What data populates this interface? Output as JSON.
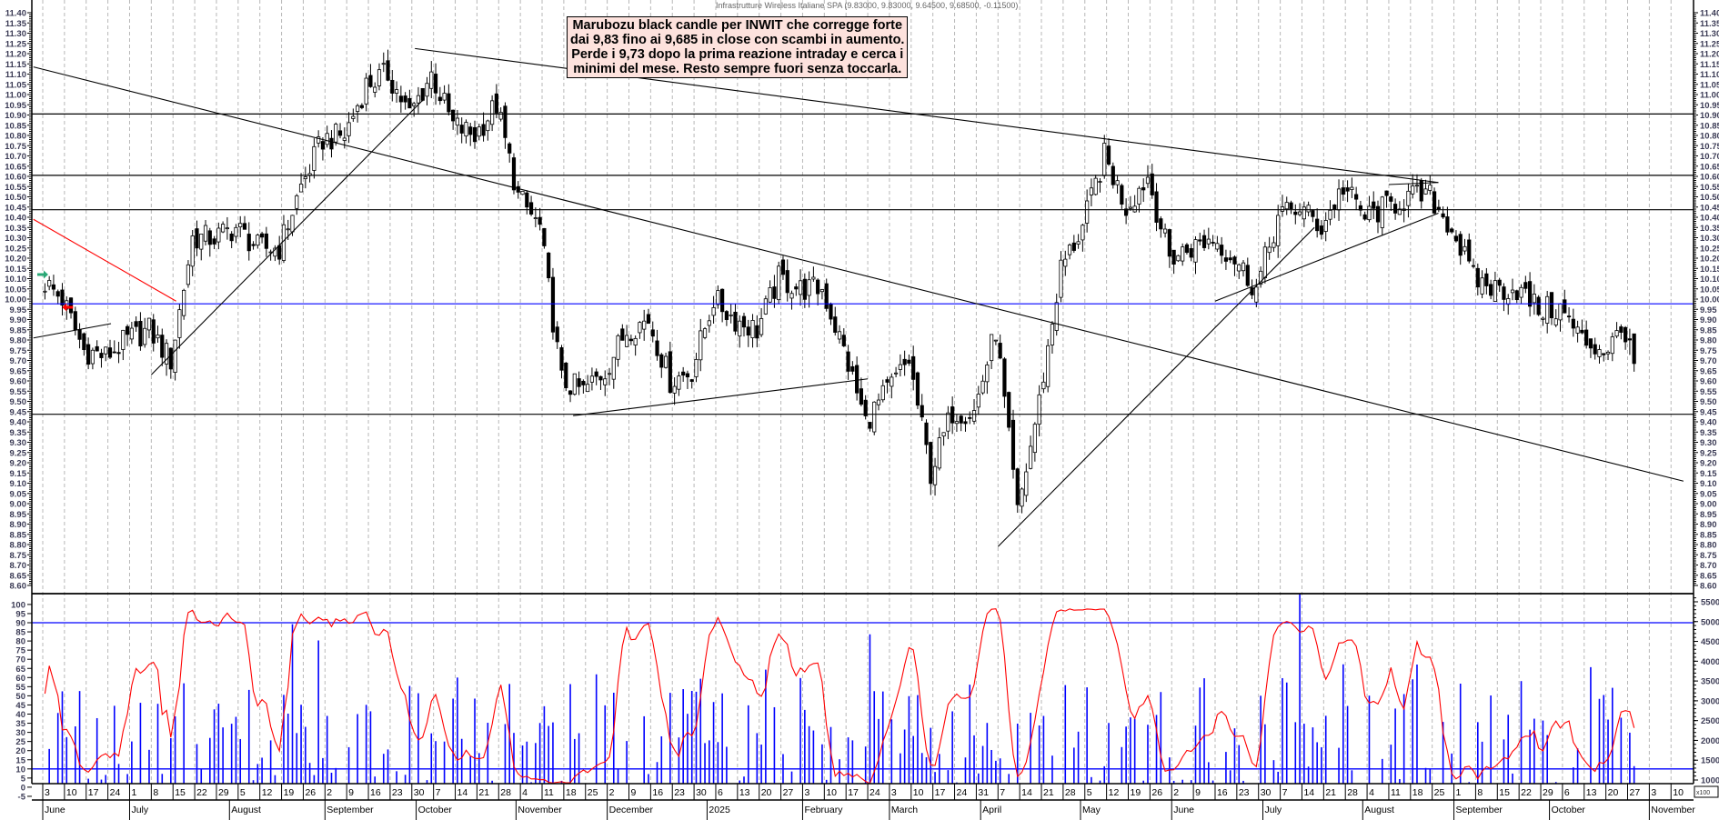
{
  "chart_data": [
    {
      "type": "candlestick",
      "title": "Infrastrutture Wireless Italiane SPA (9.83000, 9.83000, 9.64500, 9.68500, -0.11500)",
      "annotation": [
        "Marubozu black candle per INWIT che corregge forte",
        "dai 9,83 fino ai 9,685 in close con scambi in aumento.",
        "Perde i 9,73 dopo la prima reazione intraday e cerca i",
        "minimi del mese. Resto sempre fuori senza toccarla."
      ],
      "last_candle": {
        "open": 9.83,
        "high": 9.83,
        "low": 9.645,
        "close": 9.685,
        "change": -0.115
      },
      "ylim": [
        8.6,
        11.4
      ],
      "ytick_step": 0.05,
      "grid": "vertical dashed weekly",
      "week_labels": [
        "3",
        "10",
        "17",
        "24",
        "1",
        "8",
        "15",
        "22",
        "29",
        "5",
        "12",
        "19",
        "26",
        "2",
        "9",
        "16",
        "23",
        "30",
        "7",
        "14",
        "21",
        "28",
        "4",
        "11",
        "18",
        "25",
        "2",
        "9",
        "16",
        "23",
        "30",
        "6",
        "13",
        "20",
        "27",
        "3",
        "10",
        "17",
        "24",
        "3",
        "10",
        "17",
        "24",
        "31",
        "7",
        "14",
        "21",
        "28",
        "5",
        "12",
        "19",
        "26",
        "2",
        "9",
        "16",
        "23",
        "30",
        "7",
        "14",
        "21",
        "28",
        "4",
        "11",
        "18",
        "25",
        "1",
        "8",
        "15",
        "22",
        "29",
        "6",
        "13",
        "20",
        "27",
        "3",
        "10"
      ],
      "months": [
        {
          "label": "June",
          "date": "2024-06-03"
        },
        {
          "label": "July",
          "date": "2024-07-01"
        },
        {
          "label": "August",
          "date": "2024-08-01"
        },
        {
          "label": "September",
          "date": "2024-09-02"
        },
        {
          "label": "October",
          "date": "2024-10-01"
        },
        {
          "label": "November",
          "date": "2024-11-01"
        },
        {
          "label": "December",
          "date": "2024-12-02"
        },
        {
          "label": "2025",
          "date": "2025-01-02"
        },
        {
          "label": "February",
          "date": "2025-02-03"
        },
        {
          "label": "March",
          "date": "2025-03-03"
        },
        {
          "label": "April",
          "date": "2025-04-01"
        },
        {
          "label": "May",
          "date": "2025-05-02"
        },
        {
          "label": "June",
          "date": "2025-06-02"
        },
        {
          "label": "July",
          "date": "2025-07-01"
        },
        {
          "label": "August",
          "date": "2025-08-01"
        },
        {
          "label": "September",
          "date": "2025-09-01"
        },
        {
          "label": "October",
          "date": "2025-10-01"
        },
        {
          "label": "November",
          "date": "2025-11-03"
        }
      ],
      "weekly_close": [
        [
          "2024-06-03",
          10.0
        ],
        [
          "2024-06-10",
          9.75
        ],
        [
          "2024-06-17",
          9.72
        ],
        [
          "2024-06-24",
          9.8
        ],
        [
          "2024-07-01",
          9.85
        ],
        [
          "2024-07-08",
          9.7
        ],
        [
          "2024-07-15",
          10.3
        ],
        [
          "2024-07-22",
          10.3
        ],
        [
          "2024-07-29",
          10.35
        ],
        [
          "2024-08-05",
          10.25
        ],
        [
          "2024-08-12",
          10.25
        ],
        [
          "2024-08-19",
          10.55
        ],
        [
          "2024-08-26",
          10.78
        ],
        [
          "2024-09-02",
          10.8
        ],
        [
          "2024-09-09",
          11.05
        ],
        [
          "2024-09-16",
          11.1
        ],
        [
          "2024-09-23",
          10.9
        ],
        [
          "2024-09-30",
          11.1
        ],
        [
          "2024-10-07",
          10.85
        ],
        [
          "2024-10-14",
          10.8
        ],
        [
          "2024-10-21",
          10.95
        ],
        [
          "2024-10-28",
          10.5
        ],
        [
          "2024-11-04",
          10.35
        ],
        [
          "2024-11-11",
          9.6
        ],
        [
          "2024-11-18",
          9.55
        ],
        [
          "2024-11-25",
          9.65
        ],
        [
          "2024-12-02",
          9.85
        ],
        [
          "2024-12-09",
          9.9
        ],
        [
          "2024-12-16",
          9.6
        ],
        [
          "2024-12-23",
          9.65
        ],
        [
          "2024-12-30",
          10.0
        ],
        [
          "2025-01-06",
          9.9
        ],
        [
          "2025-01-13",
          9.85
        ],
        [
          "2025-01-20",
          10.1
        ],
        [
          "2025-01-27",
          10.05
        ],
        [
          "2025-02-03",
          10.05
        ],
        [
          "2025-02-10",
          9.75
        ],
        [
          "2025-02-17",
          9.4
        ],
        [
          "2025-02-24",
          9.55
        ],
        [
          "2025-03-03",
          9.7
        ],
        [
          "2025-03-10",
          9.15
        ],
        [
          "2025-03-17",
          9.45
        ],
        [
          "2025-03-24",
          9.45
        ],
        [
          "2025-03-31",
          9.85
        ],
        [
          "2025-04-07",
          8.95
        ],
        [
          "2025-04-14",
          9.5
        ],
        [
          "2025-04-21",
          10.15
        ],
        [
          "2025-04-28",
          10.35
        ],
        [
          "2025-05-05",
          10.7
        ],
        [
          "2025-05-12",
          10.45
        ],
        [
          "2025-05-19",
          10.6
        ],
        [
          "2025-05-26",
          10.2
        ],
        [
          "2025-06-02",
          10.25
        ],
        [
          "2025-06-09",
          10.3
        ],
        [
          "2025-06-16",
          10.2
        ],
        [
          "2025-06-23",
          10.05
        ],
        [
          "2025-06-30",
          10.4
        ],
        [
          "2025-07-07",
          10.45
        ],
        [
          "2025-07-14",
          10.35
        ],
        [
          "2025-07-21",
          10.55
        ],
        [
          "2025-07-28",
          10.4
        ],
        [
          "2025-08-04",
          10.45
        ],
        [
          "2025-08-11",
          10.5
        ],
        [
          "2025-08-18",
          10.5
        ],
        [
          "2025-08-25",
          10.35
        ],
        [
          "2025-09-01",
          10.1
        ],
        [
          "2025-09-08",
          10.05
        ],
        [
          "2025-09-15",
          10.05
        ],
        [
          "2025-09-22",
          9.95
        ],
        [
          "2025-09-29",
          9.95
        ],
        [
          "2025-10-06",
          9.8
        ],
        [
          "2025-10-13",
          9.75
        ],
        [
          "2025-10-20",
          9.85
        ],
        [
          "2025-10-27",
          9.685
        ]
      ],
      "horizontal_lines": [
        {
          "price": 10.905,
          "color": "#000000"
        },
        {
          "price": 10.605,
          "color": "#000000"
        },
        {
          "price": 10.437,
          "color": "#000000"
        },
        {
          "price": 9.977,
          "color": "#0000ff"
        },
        {
          "price": 9.437,
          "color": "#000000"
        }
      ],
      "trendlines": [
        {
          "from": [
            "2024-05-31",
            11.135
          ],
          "to": [
            "2025-11-14",
            9.11
          ],
          "color": "#000000"
        },
        {
          "from": [
            "2024-10-01",
            11.225
          ],
          "to": [
            "2025-08-27",
            10.57
          ],
          "color": "#000000"
        },
        {
          "from": [
            "2024-05-31",
            10.39
          ],
          "to": [
            "2024-07-16",
            9.99
          ],
          "color": "#ff0000"
        },
        {
          "from": [
            "2024-05-31",
            9.81
          ],
          "to": [
            "2024-06-25",
            9.88
          ],
          "color": "#000000"
        },
        {
          "from": [
            "2024-07-08",
            9.63
          ],
          "to": [
            "2024-10-04",
            10.98
          ],
          "color": "#000000"
        },
        {
          "from": [
            "2024-11-21",
            9.43
          ],
          "to": [
            "2025-02-24",
            9.61
          ],
          "color": "#000000"
        },
        {
          "from": [
            "2025-04-07",
            8.79
          ],
          "to": [
            "2025-07-18",
            10.35
          ],
          "color": "#000000"
        },
        {
          "from": [
            "2025-06-16",
            9.99
          ],
          "to": [
            "2025-08-27",
            10.42
          ],
          "color": "#000000"
        },
        {
          "from": [
            "2025-08-11",
            10.56
          ],
          "to": [
            "2025-08-27",
            10.57
          ],
          "color": "#000000"
        }
      ],
      "markers": [
        {
          "type": "arrow-right",
          "date": "2024-06-03",
          "price": 10.12,
          "color": "#2aa876"
        },
        {
          "type": "arrow-left",
          "date": "2024-06-11",
          "price": 9.96,
          "color": "#ff0000"
        }
      ]
    },
    {
      "type": "line+bar",
      "oscillator": {
        "ylim": [
          -5,
          100
        ],
        "levels": [
          90,
          10
        ],
        "line_color": "#ff0000",
        "level_color": "#0000ff"
      },
      "volume": {
        "ylim": [
          10000,
          55000
        ],
        "tick_step": 5000,
        "unit_label": "x100",
        "bar_color": "#0000ff"
      }
    }
  ]
}
